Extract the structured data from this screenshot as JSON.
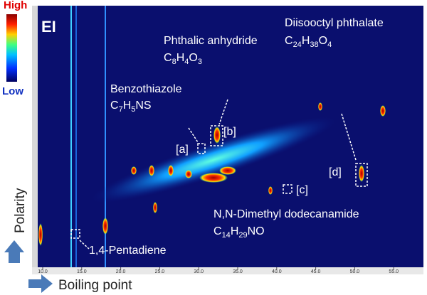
{
  "colorbar": {
    "high": "High",
    "low": "Low"
  },
  "panel_label": "EI",
  "compounds": [
    {
      "name": "Phthalic anhydride",
      "formula": [
        "C",
        "8",
        "H",
        "4",
        "O",
        "3"
      ]
    },
    {
      "name": "Benzothiazole",
      "formula": [
        "C",
        "7",
        "H",
        "5",
        "NS"
      ]
    },
    {
      "name": "Diisooctyl phthalate",
      "formula": [
        "C",
        "24",
        "H",
        "38",
        "O",
        "4"
      ]
    },
    {
      "name": "N,N-Dimethyl dodecanamide",
      "formula": [
        "C",
        "14",
        "H",
        "29",
        "NO"
      ]
    },
    {
      "name": "1,4-Pentadiene"
    }
  ],
  "markers": [
    "[a]",
    "[b]",
    "[c]",
    "[d]"
  ],
  "x_axis": {
    "label": "Boiling point",
    "ticks": [
      "10.0",
      "15.0",
      "20.0",
      "25.0",
      "30.0",
      "35.0",
      "40.0",
      "45.0",
      "50.0",
      "55.0"
    ]
  },
  "y_axis": {
    "label": "Polarity"
  }
}
